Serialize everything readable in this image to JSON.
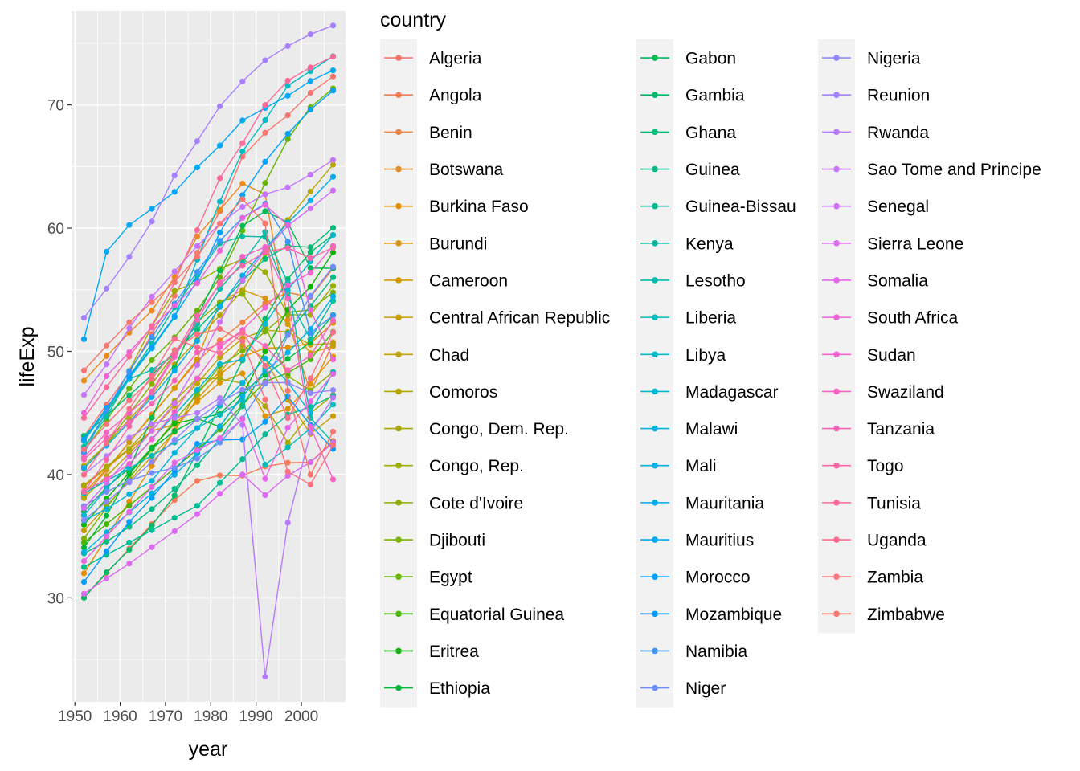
{
  "chart_data": {
    "type": "line",
    "xlabel": "year",
    "ylabel": "lifeExp",
    "xlim": [
      1949.25,
      2009.75
    ],
    "ylim": [
      21.55,
      77.6
    ],
    "xticks": [
      1950,
      1960,
      1970,
      1980,
      1990,
      2000
    ],
    "yticks": [
      30,
      40,
      50,
      60,
      70
    ],
    "grid": true,
    "markers": true,
    "legend_title": "country",
    "legend_position": "right",
    "x": [
      1952,
      1957,
      1962,
      1967,
      1972,
      1977,
      1982,
      1987,
      1992,
      1997,
      2002,
      2007
    ],
    "series": [
      {
        "name": "Algeria",
        "color": "#F8766D",
        "values": [
          43.08,
          45.69,
          48.3,
          51.41,
          54.52,
          58.01,
          61.37,
          65.8,
          67.74,
          69.15,
          70.99,
          72.3
        ]
      },
      {
        "name": "Angola",
        "color": "#F57D58",
        "values": [
          30.02,
          31.99,
          34.0,
          35.99,
          37.93,
          39.48,
          39.94,
          39.91,
          40.65,
          40.96,
          41.0,
          42.73
        ]
      },
      {
        "name": "Benin",
        "color": "#F1833F",
        "values": [
          38.22,
          40.36,
          42.62,
          44.89,
          47.01,
          49.19,
          50.9,
          52.34,
          53.92,
          54.78,
          54.41,
          56.73
        ]
      },
      {
        "name": "Botswana",
        "color": "#EB8A1A",
        "values": [
          47.62,
          49.62,
          51.52,
          53.3,
          56.02,
          59.32,
          61.48,
          63.62,
          62.75,
          52.56,
          46.63,
          50.73
        ]
      },
      {
        "name": "Burkina Faso",
        "color": "#E48F00",
        "values": [
          31.98,
          34.91,
          37.81,
          40.7,
          43.59,
          46.14,
          48.12,
          49.56,
          50.26,
          50.32,
          50.65,
          52.3
        ]
      },
      {
        "name": "Burundi",
        "color": "#DC9500",
        "values": [
          39.03,
          40.53,
          42.05,
          43.55,
          44.06,
          45.91,
          47.47,
          48.21,
          44.74,
          45.33,
          47.36,
          49.58
        ]
      },
      {
        "name": "Cameroon",
        "color": "#D49A00",
        "values": [
          38.52,
          40.43,
          42.64,
          44.8,
          47.05,
          49.36,
          53.98,
          54.99,
          54.31,
          52.2,
          49.86,
          50.43
        ]
      },
      {
        "name": "Central African Republic",
        "color": "#CA9E00",
        "values": [
          35.46,
          37.46,
          39.48,
          41.48,
          43.46,
          46.78,
          48.3,
          50.49,
          49.4,
          46.07,
          43.31,
          44.74
        ]
      },
      {
        "name": "Chad",
        "color": "#C0A200",
        "values": [
          38.09,
          39.88,
          41.72,
          43.6,
          45.57,
          47.38,
          49.52,
          51.05,
          51.72,
          51.57,
          50.53,
          50.65
        ]
      },
      {
        "name": "Comoros",
        "color": "#B5A600",
        "values": [
          40.72,
          42.46,
          44.47,
          46.47,
          48.94,
          50.94,
          52.93,
          54.93,
          57.94,
          60.66,
          62.97,
          65.15
        ]
      },
      {
        "name": "Congo, Dem. Rep.",
        "color": "#A9AA00",
        "values": [
          39.14,
          40.65,
          42.12,
          44.06,
          45.99,
          47.8,
          47.78,
          47.41,
          45.55,
          42.59,
          44.97,
          46.46
        ]
      },
      {
        "name": "Congo, Rep.",
        "color": "#9CAD00",
        "values": [
          42.11,
          45.05,
          48.43,
          52.04,
          54.91,
          55.63,
          56.7,
          57.47,
          56.43,
          52.96,
          52.97,
          55.32
        ]
      },
      {
        "name": "Cote d'Ivoire",
        "color": "#8DB000",
        "values": [
          40.48,
          42.47,
          44.93,
          47.35,
          49.8,
          52.37,
          53.98,
          54.66,
          52.04,
          47.99,
          46.83,
          48.33
        ]
      },
      {
        "name": "Djibouti",
        "color": "#7BB300",
        "values": [
          34.81,
          37.33,
          39.69,
          42.07,
          44.37,
          46.52,
          48.81,
          50.04,
          51.6,
          53.16,
          53.37,
          54.79
        ]
      },
      {
        "name": "Egypt",
        "color": "#66B500",
        "values": [
          41.89,
          44.44,
          46.99,
          49.29,
          51.14,
          53.32,
          56.01,
          59.8,
          63.67,
          67.22,
          69.81,
          71.34
        ]
      },
      {
        "name": "Equatorial Guinea",
        "color": "#48B700",
        "values": [
          34.48,
          35.98,
          37.49,
          38.99,
          40.52,
          42.02,
          43.66,
          45.66,
          47.55,
          48.25,
          49.35,
          51.58
        ]
      },
      {
        "name": "Eritrea",
        "color": "#0BB800",
        "values": [
          35.93,
          38.05,
          40.16,
          42.19,
          44.14,
          44.54,
          43.89,
          46.45,
          49.99,
          53.38,
          55.24,
          58.04
        ]
      },
      {
        "name": "Ethiopia",
        "color": "#00B939",
        "values": [
          34.08,
          36.67,
          40.06,
          42.12,
          43.52,
          44.51,
          44.92,
          46.68,
          48.09,
          49.4,
          50.73,
          52.95
        ]
      },
      {
        "name": "Gabon",
        "color": "#00BA53",
        "values": [
          37.0,
          38.99,
          40.49,
          44.6,
          48.69,
          52.79,
          56.56,
          60.19,
          61.37,
          60.46,
          56.76,
          56.74
        ]
      },
      {
        "name": "Gambia",
        "color": "#00BB66",
        "values": [
          30.0,
          32.07,
          33.9,
          35.86,
          38.31,
          41.84,
          45.58,
          49.27,
          52.64,
          55.86,
          58.04,
          59.45
        ]
      },
      {
        "name": "Ghana",
        "color": "#00BC77",
        "values": [
          43.15,
          44.78,
          46.45,
          48.07,
          49.88,
          51.76,
          53.74,
          55.73,
          57.5,
          58.56,
          58.45,
          60.02
        ]
      },
      {
        "name": "Guinea",
        "color": "#00BC86",
        "values": [
          33.61,
          34.56,
          35.75,
          37.2,
          38.84,
          40.76,
          42.89,
          45.55,
          48.58,
          51.46,
          53.68,
          56.01
        ]
      },
      {
        "name": "Guinea-Bissau",
        "color": "#00BD94",
        "values": [
          32.5,
          33.49,
          34.49,
          35.49,
          36.49,
          37.47,
          39.33,
          41.25,
          43.27,
          44.87,
          45.5,
          46.39
        ]
      },
      {
        "name": "Kenya",
        "color": "#00BDA1",
        "values": [
          42.27,
          44.69,
          47.95,
          50.65,
          53.56,
          56.16,
          58.77,
          59.34,
          59.29,
          54.41,
          50.99,
          54.11
        ]
      },
      {
        "name": "Lesotho",
        "color": "#00BDAE",
        "values": [
          42.14,
          45.05,
          47.75,
          48.49,
          49.77,
          52.21,
          55.08,
          57.18,
          59.69,
          55.56,
          44.59,
          42.59
        ]
      },
      {
        "name": "Liberia",
        "color": "#00BCBA",
        "values": [
          38.48,
          39.49,
          40.5,
          41.54,
          42.61,
          43.76,
          44.85,
          46.03,
          40.8,
          42.22,
          43.75,
          45.68
        ]
      },
      {
        "name": "Libya",
        "color": "#00BAC6",
        "values": [
          42.72,
          45.29,
          47.81,
          50.23,
          52.77,
          57.44,
          62.16,
          66.23,
          68.76,
          71.56,
          72.74,
          73.95
        ]
      },
      {
        "name": "Madagascar",
        "color": "#00B8D1",
        "values": [
          36.68,
          38.87,
          40.85,
          42.88,
          44.85,
          46.88,
          48.97,
          49.35,
          52.21,
          54.98,
          57.29,
          59.44
        ]
      },
      {
        "name": "Malawi",
        "color": "#00B5DC",
        "values": [
          36.26,
          37.21,
          38.41,
          39.49,
          41.77,
          43.77,
          45.64,
          47.46,
          49.42,
          47.5,
          45.01,
          48.3
        ]
      },
      {
        "name": "Mali",
        "color": "#00B1E6",
        "values": [
          33.69,
          35.31,
          36.94,
          38.49,
          39.98,
          41.71,
          43.92,
          46.36,
          48.39,
          49.9,
          51.82,
          54.47
        ]
      },
      {
        "name": "Mauritania",
        "color": "#00ADEF",
        "values": [
          40.54,
          42.34,
          44.25,
          46.29,
          48.44,
          50.85,
          53.6,
          56.15,
          58.33,
          60.43,
          62.25,
          64.16
        ]
      },
      {
        "name": "Mauritius",
        "color": "#00A8F7",
        "values": [
          50.99,
          58.09,
          60.25,
          61.56,
          62.94,
          64.93,
          66.71,
          68.74,
          69.75,
          70.74,
          71.95,
          72.8
        ]
      },
      {
        "name": "Morocco",
        "color": "#00A2FE",
        "values": [
          42.87,
          45.42,
          47.92,
          50.34,
          52.86,
          55.73,
          59.65,
          62.68,
          65.39,
          67.66,
          69.62,
          71.16
        ]
      },
      {
        "name": "Mozambique",
        "color": "#009CFF",
        "values": [
          31.29,
          33.78,
          36.16,
          38.11,
          40.33,
          42.5,
          42.8,
          42.86,
          44.28,
          46.34,
          44.03,
          42.08
        ]
      },
      {
        "name": "Namibia",
        "color": "#3A95FF",
        "values": [
          41.73,
          45.23,
          48.39,
          51.16,
          53.87,
          56.44,
          58.97,
          60.84,
          61.99,
          58.91,
          51.48,
          52.91
        ]
      },
      {
        "name": "Niger",
        "color": "#6F8EFF",
        "values": [
          37.44,
          38.6,
          39.49,
          40.12,
          40.55,
          41.29,
          42.6,
          44.56,
          47.39,
          51.31,
          54.5,
          56.87
        ]
      },
      {
        "name": "Nigeria",
        "color": "#8F87FF",
        "values": [
          36.32,
          37.8,
          39.36,
          41.04,
          42.82,
          44.51,
          45.83,
          46.89,
          47.47,
          47.46,
          46.61,
          46.86
        ]
      },
      {
        "name": "Reunion",
        "color": "#A680FF",
        "values": [
          52.72,
          55.09,
          57.67,
          60.54,
          64.27,
          67.06,
          69.89,
          71.91,
          73.62,
          74.77,
          75.74,
          76.44
        ]
      },
      {
        "name": "Rwanda",
        "color": "#B779FF",
        "values": [
          40.0,
          41.5,
          43.0,
          44.1,
          44.6,
          45.0,
          46.22,
          44.02,
          23.6,
          36.09,
          43.41,
          46.24
        ]
      },
      {
        "name": "Sao Tome and Principe",
        "color": "#C673FF",
        "values": [
          46.47,
          48.95,
          51.89,
          54.43,
          56.48,
          58.55,
          60.35,
          61.73,
          62.74,
          63.31,
          64.34,
          65.53
        ]
      },
      {
        "name": "Senegal",
        "color": "#D26DFA",
        "values": [
          37.28,
          39.33,
          41.45,
          43.56,
          45.81,
          48.88,
          52.38,
          55.77,
          58.2,
          60.19,
          61.6,
          63.06
        ]
      },
      {
        "name": "Sierra Leone",
        "color": "#DC69F1",
        "values": [
          30.33,
          31.57,
          32.77,
          34.11,
          35.4,
          36.79,
          38.45,
          40.01,
          38.33,
          39.9,
          41.01,
          42.57
        ]
      },
      {
        "name": "Somalia",
        "color": "#E566E7",
        "values": [
          32.98,
          34.98,
          36.98,
          38.98,
          40.97,
          41.97,
          42.96,
          44.5,
          39.66,
          43.8,
          45.94,
          48.16
        ]
      },
      {
        "name": "South Africa",
        "color": "#ED63DC",
        "values": [
          45.01,
          47.99,
          49.95,
          51.93,
          53.7,
          55.53,
          58.16,
          60.83,
          61.89,
          60.24,
          53.37,
          49.34
        ]
      },
      {
        "name": "Sudan",
        "color": "#F363D0",
        "values": [
          38.64,
          39.62,
          40.87,
          42.86,
          45.08,
          47.8,
          50.34,
          51.74,
          53.56,
          55.37,
          56.37,
          58.56
        ]
      },
      {
        "name": "Swaziland",
        "color": "#F763C4",
        "values": [
          41.41,
          43.42,
          44.99,
          46.63,
          49.55,
          52.54,
          55.56,
          57.68,
          58.47,
          54.29,
          43.87,
          39.61
        ]
      },
      {
        "name": "Tanzania",
        "color": "#FA64B7",
        "values": [
          41.22,
          42.97,
          44.25,
          45.76,
          47.62,
          49.92,
          50.61,
          51.54,
          50.44,
          48.47,
          49.65,
          52.52
        ]
      },
      {
        "name": "Togo",
        "color": "#FC66A9",
        "values": [
          38.6,
          41.21,
          43.92,
          46.77,
          49.76,
          52.89,
          55.47,
          56.94,
          58.06,
          58.39,
          57.56,
          58.42
        ]
      },
      {
        "name": "Tunisia",
        "color": "#FD699B",
        "values": [
          44.6,
          47.1,
          49.58,
          52.05,
          55.6,
          59.84,
          64.05,
          66.89,
          70.0,
          71.97,
          73.04,
          73.92
        ]
      },
      {
        "name": "Uganda",
        "color": "#FD6D8D",
        "values": [
          39.98,
          42.57,
          45.34,
          48.05,
          51.02,
          50.35,
          49.85,
          51.51,
          48.83,
          44.58,
          47.81,
          51.54
        ]
      },
      {
        "name": "Zambia",
        "color": "#FB727E",
        "values": [
          42.04,
          44.08,
          46.02,
          47.77,
          50.11,
          51.39,
          51.82,
          50.82,
          46.1,
          40.24,
          39.19,
          42.38
        ]
      },
      {
        "name": "Zimbabwe",
        "color": "#F8766D",
        "values": [
          48.45,
          50.47,
          52.36,
          53.99,
          55.64,
          57.67,
          60.36,
          62.35,
          60.38,
          46.81,
          39.99,
          43.49
        ]
      }
    ]
  }
}
